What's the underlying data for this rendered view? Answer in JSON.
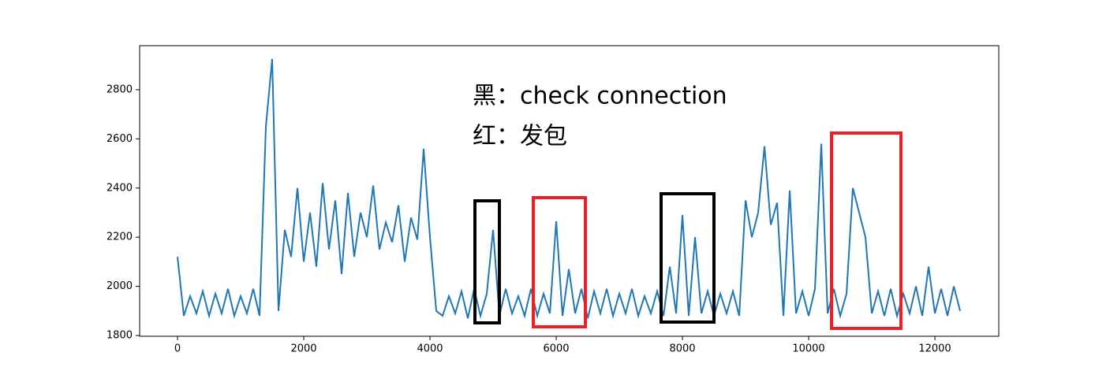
{
  "chart_data": {
    "type": "line",
    "annotations": [
      "黑：check connection",
      "红：发包"
    ],
    "x": [
      0,
      100,
      200,
      300,
      400,
      500,
      600,
      700,
      800,
      900,
      1000,
      1100,
      1200,
      1300,
      1400,
      1500,
      1600,
      1700,
      1800,
      1900,
      2000,
      2100,
      2200,
      2300,
      2400,
      2500,
      2600,
      2700,
      2800,
      2900,
      3000,
      3100,
      3200,
      3300,
      3400,
      3500,
      3600,
      3700,
      3800,
      3900,
      4000,
      4100,
      4200,
      4300,
      4400,
      4500,
      4600,
      4700,
      4800,
      4900,
      5000,
      5100,
      5200,
      5300,
      5400,
      5500,
      5600,
      5700,
      5800,
      5900,
      6000,
      6100,
      6200,
      6300,
      6400,
      6500,
      6600,
      6700,
      6800,
      6900,
      7000,
      7100,
      7200,
      7300,
      7400,
      7500,
      7600,
      7700,
      7800,
      7900,
      8000,
      8100,
      8200,
      8300,
      8400,
      8500,
      8600,
      8700,
      8800,
      8900,
      9000,
      9100,
      9200,
      9300,
      9400,
      9500,
      9600,
      9700,
      9800,
      9900,
      10000,
      10100,
      10200,
      10300,
      10400,
      10500,
      10600,
      10700,
      10800,
      10900,
      11000,
      11100,
      11200,
      11300,
      11400,
      11500,
      11600,
      11700,
      11800,
      11900,
      12000,
      12100,
      12200,
      12300,
      12400
    ],
    "series": [
      {
        "color": "#1f77b4",
        "values": [
          2120,
          1880,
          1960,
          1890,
          1980,
          1880,
          1970,
          1890,
          1990,
          1880,
          1960,
          1890,
          1990,
          1880,
          2650,
          2925,
          1900,
          2230,
          2120,
          2400,
          2100,
          2300,
          2080,
          2420,
          2150,
          2350,
          2050,
          2380,
          2120,
          2300,
          2200,
          2410,
          2150,
          2260,
          2180,
          2330,
          2100,
          2280,
          2190,
          2560,
          2200,
          1900,
          1880,
          1960,
          1890,
          1980,
          1870,
          1990,
          1880,
          1970,
          2230,
          1880,
          1990,
          1890,
          1960,
          1880,
          1990,
          1880,
          1970,
          1890,
          2265,
          1880,
          2070,
          1890,
          1990,
          1870,
          1980,
          1890,
          1990,
          1880,
          1970,
          1890,
          1990,
          1880,
          1960,
          1890,
          1980,
          1880,
          2080,
          1890,
          2290,
          1880,
          2200,
          1890,
          1980,
          1880,
          1970,
          1890,
          1980,
          1880,
          2350,
          2200,
          2300,
          2570,
          2250,
          2340,
          1880,
          2390,
          1890,
          1980,
          1880,
          1990,
          2580,
          1890,
          1990,
          1880,
          1970,
          2400,
          2300,
          2200,
          1890,
          1980,
          1880,
          1990,
          1880,
          1970,
          1890,
          2000,
          1880,
          2080,
          1890,
          1990,
          1880,
          2000,
          1900
        ]
      }
    ],
    "xlim": [
      -600,
      13012
    ],
    "ylim": [
      1797,
      2979
    ],
    "xticks": [
      0,
      2000,
      4000,
      6000,
      8000,
      10000,
      12000
    ],
    "yticks": [
      1800,
      2000,
      2200,
      2400,
      2600,
      2800
    ]
  }
}
